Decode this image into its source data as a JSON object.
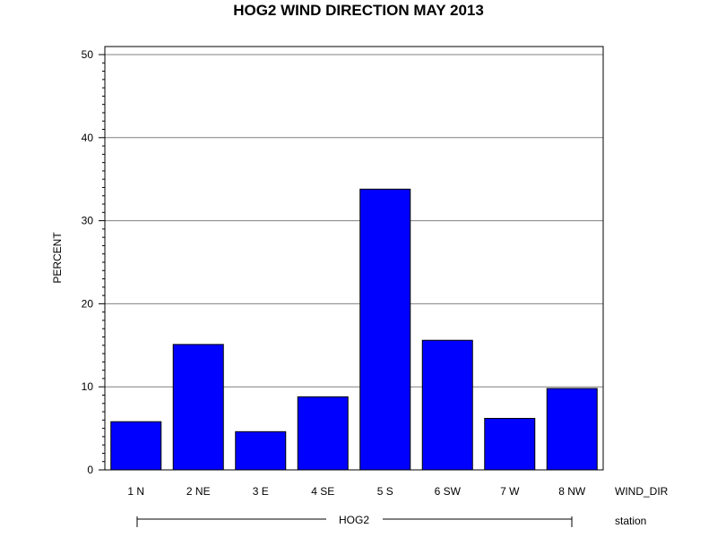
{
  "chart_data": {
    "type": "bar",
    "title": "HOG2 WIND DIRECTION MAY 2013",
    "ylabel": "PERCENT",
    "xlabel": "WIND_DIR",
    "group_axis_label": "station",
    "group_label": "HOG2",
    "categories": [
      "1 N",
      "2 NE",
      "3 E",
      "4 SE",
      "5 S",
      "6 SW",
      "7 W",
      "8 NW"
    ],
    "values": [
      5.8,
      15.1,
      4.6,
      8.8,
      33.8,
      15.6,
      6.2,
      9.8
    ],
    "ylim": [
      0,
      50
    ],
    "yticks": [
      0,
      10,
      20,
      30,
      40,
      50
    ],
    "grid": true,
    "bar_color": "#0000ff",
    "bar_edge_color": "#000000"
  }
}
